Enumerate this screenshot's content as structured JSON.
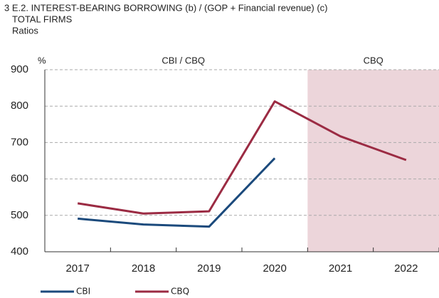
{
  "chart_data": {
    "type": "line",
    "title": "3 E.2. INTEREST-BEARING BORROWING (b) / (GOP + Financial revenue) (c)",
    "subtitle": "TOTAL FIRMS",
    "y_label": "Ratios",
    "unit_label": "%",
    "annotations": [
      "CBI / CBQ",
      "CBQ"
    ],
    "categories": [
      "2017",
      "2018",
      "2019",
      "2020",
      "2021",
      "2022"
    ],
    "series": [
      {
        "name": "CBI",
        "color": "#1b4a7c",
        "values": [
          491,
          475,
          469,
          657,
          null,
          null
        ]
      },
      {
        "name": "CBQ",
        "color": "#9b2b43",
        "values": [
          533,
          505,
          511,
          813,
          717,
          652
        ]
      }
    ],
    "ylim": [
      400,
      900
    ],
    "yticks": [
      400,
      500,
      600,
      700,
      800,
      900
    ],
    "grid": true,
    "shade_color": "#ecd5da",
    "legend": "bottom"
  }
}
